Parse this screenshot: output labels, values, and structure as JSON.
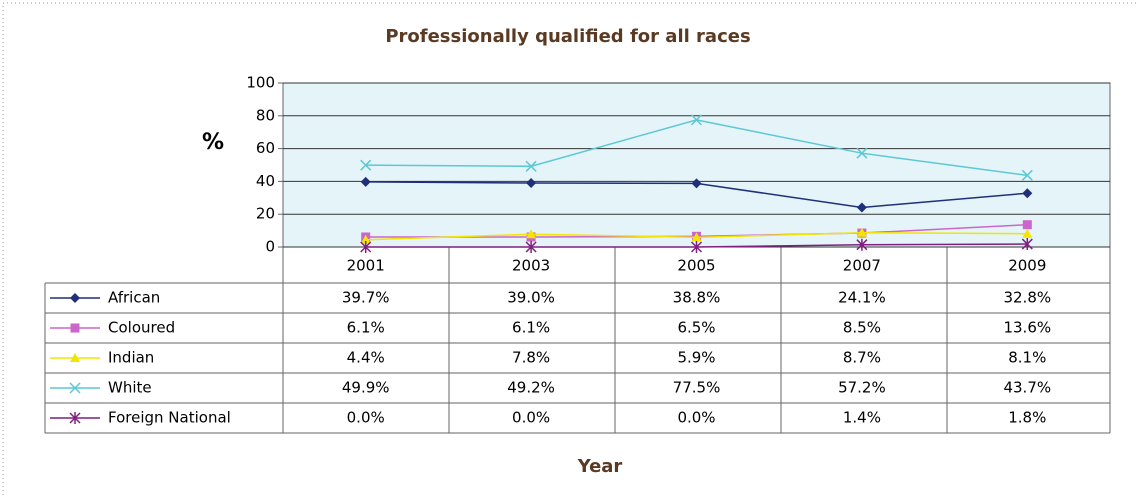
{
  "chart_data": {
    "type": "line",
    "title": "Professionally qualified for all races",
    "y_label": "%",
    "x_label": "Year",
    "categories": [
      "2001",
      "2003",
      "2005",
      "2007",
      "2009"
    ],
    "ylim": [
      0,
      100
    ],
    "yticks": [
      0,
      20,
      40,
      60,
      80,
      100
    ],
    "grid": true,
    "series": [
      {
        "name": "African",
        "color": "#1f2f7a",
        "marker": "diamond",
        "values": [
          39.7,
          39.0,
          38.8,
          24.1,
          32.8
        ],
        "value_labels": [
          "39.7%",
          "39.0%",
          "38.8%",
          "24.1%",
          "32.8%"
        ]
      },
      {
        "name": "Coloured",
        "color": "#cc66cc",
        "marker": "square",
        "values": [
          6.1,
          6.1,
          6.5,
          8.5,
          13.6
        ],
        "value_labels": [
          "6.1%",
          "6.1%",
          "6.5%",
          "8.5%",
          "13.6%"
        ]
      },
      {
        "name": "Indian",
        "color": "#f2e600",
        "marker": "triangle",
        "values": [
          4.4,
          7.8,
          5.9,
          8.7,
          8.1
        ],
        "value_labels": [
          "4.4%",
          "7.8%",
          "5.9%",
          "8.7%",
          "8.1%"
        ]
      },
      {
        "name": "White",
        "color": "#5cc8d4",
        "marker": "x",
        "values": [
          49.9,
          49.2,
          77.5,
          57.2,
          43.7
        ],
        "value_labels": [
          "49.9%",
          "49.2%",
          "77.5%",
          "57.2%",
          "43.7%"
        ]
      },
      {
        "name": "Foreign National",
        "color": "#7f1f7f",
        "marker": "star",
        "values": [
          0.0,
          0.0,
          0.0,
          1.4,
          1.8
        ],
        "value_labels": [
          "0.0%",
          "0.0%",
          "0.0%",
          "1.4%",
          "1.8%"
        ]
      }
    ]
  }
}
